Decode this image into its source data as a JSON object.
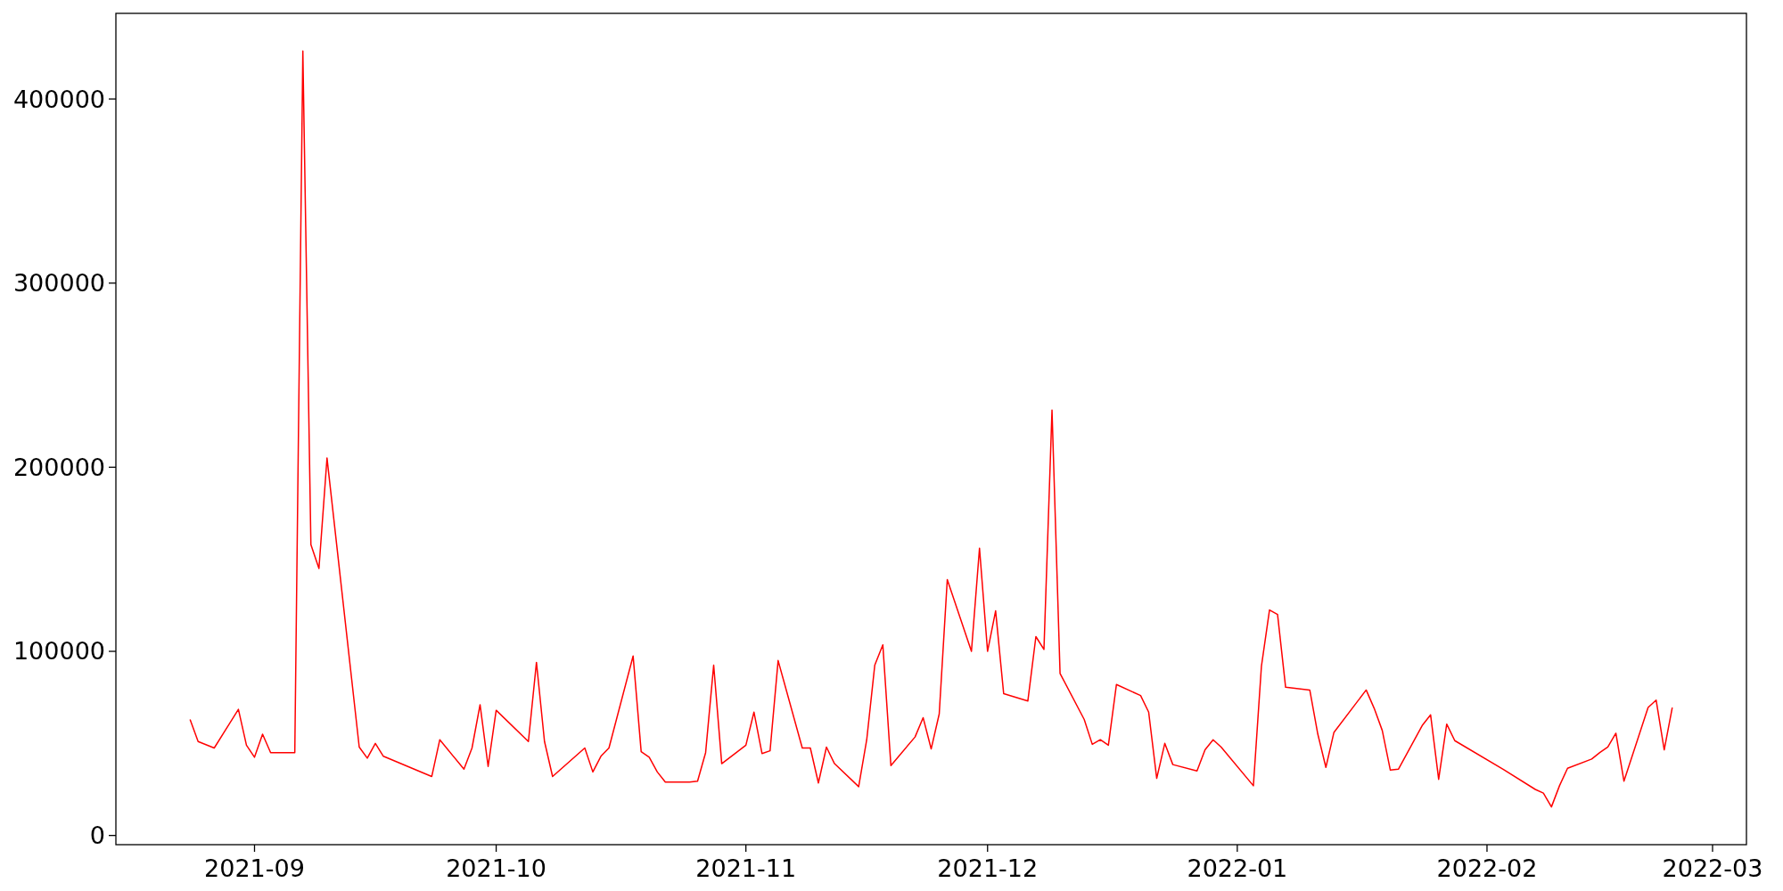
{
  "chart_data": {
    "type": "line",
    "x": [
      "2021-08-24",
      "2021-08-25",
      "2021-08-27",
      "2021-08-30",
      "2021-08-31",
      "2021-09-01",
      "2021-09-02",
      "2021-09-03",
      "2021-09-06",
      "2021-09-07",
      "2021-09-08",
      "2021-09-09",
      "2021-09-10",
      "2021-09-14",
      "2021-09-15",
      "2021-09-16",
      "2021-09-17",
      "2021-09-23",
      "2021-09-24",
      "2021-09-27",
      "2021-09-28",
      "2021-09-29",
      "2021-09-30",
      "2021-10-01",
      "2021-10-05",
      "2021-10-06",
      "2021-10-07",
      "2021-10-08",
      "2021-10-12",
      "2021-10-13",
      "2021-10-14",
      "2021-10-15",
      "2021-10-18",
      "2021-10-19",
      "2021-10-20",
      "2021-10-21",
      "2021-10-22",
      "2021-10-25",
      "2021-10-26",
      "2021-10-27",
      "2021-10-28",
      "2021-10-29",
      "2021-11-01",
      "2021-11-02",
      "2021-11-03",
      "2021-11-04",
      "2021-11-05",
      "2021-11-08",
      "2021-11-09",
      "2021-11-10",
      "2021-11-11",
      "2021-11-12",
      "2021-11-15",
      "2021-11-16",
      "2021-11-17",
      "2021-11-18",
      "2021-11-19",
      "2021-11-22",
      "2021-11-23",
      "2021-11-24",
      "2021-11-25",
      "2021-11-26",
      "2021-11-29",
      "2021-11-30",
      "2021-12-01",
      "2021-12-02",
      "2021-12-03",
      "2021-12-06",
      "2021-12-07",
      "2021-12-08",
      "2021-12-09",
      "2021-12-10",
      "2021-12-13",
      "2021-12-14",
      "2021-12-15",
      "2021-12-16",
      "2021-12-17",
      "2021-12-20",
      "2021-12-21",
      "2021-12-22",
      "2021-12-23",
      "2021-12-24",
      "2021-12-27",
      "2021-12-28",
      "2021-12-29",
      "2021-12-30",
      "2022-01-03",
      "2022-01-04",
      "2022-01-05",
      "2022-01-06",
      "2022-01-07",
      "2022-01-10",
      "2022-01-11",
      "2022-01-12",
      "2022-01-13",
      "2022-01-17",
      "2022-01-18",
      "2022-01-19",
      "2022-01-20",
      "2022-01-21",
      "2022-01-24",
      "2022-01-25",
      "2022-01-26",
      "2022-01-27",
      "2022-01-28",
      "2022-02-03",
      "2022-02-07",
      "2022-02-08",
      "2022-02-09",
      "2022-02-10",
      "2022-02-11",
      "2022-02-14",
      "2022-02-15",
      "2022-02-16",
      "2022-02-17",
      "2022-02-18",
      "2022-02-21",
      "2022-02-22",
      "2022-02-23",
      "2022-02-24"
    ],
    "series": [
      {
        "color": "#ff0000",
        "values": [
          63000,
          51000,
          47500,
          68500,
          49000,
          42500,
          55000,
          45000,
          45000,
          426000,
          158000,
          145000,
          205000,
          48000,
          42000,
          50000,
          43000,
          32000,
          52000,
          36000,
          47500,
          71000,
          37500,
          68000,
          51000,
          94000,
          51000,
          32000,
          47500,
          34500,
          43000,
          47500,
          97500,
          45500,
          42500,
          34500,
          29000,
          29000,
          29500,
          45000,
          92500,
          39000,
          49000,
          67000,
          44500,
          46000,
          95000,
          47500,
          47500,
          28500,
          48000,
          39000,
          26500,
          52000,
          92500,
          103500,
          38000,
          53500,
          64000,
          47000,
          66000,
          139000,
          100000,
          156000,
          100000,
          122000,
          77000,
          73000,
          108000,
          101000,
          231000,
          88000,
          63000,
          49500,
          52000,
          49000,
          82000,
          76000,
          67000,
          31000,
          50000,
          38500,
          35000,
          46500,
          52000,
          48000,
          27000,
          92000,
          122500,
          120000,
          80500,
          79000,
          55000,
          37000,
          56000,
          79000,
          69000,
          57000,
          35500,
          36000,
          60000,
          65500,
          30500,
          60500,
          51500,
          36000,
          25000,
          23000,
          15500,
          27000,
          36500,
          41500,
          45000,
          48000,
          55500,
          29500,
          69500,
          73500,
          46500,
          69500
        ]
      }
    ],
    "xlim": [
      "2021-08-14T19:00",
      "2022-03-05T05:00"
    ],
    "xticks": [
      {
        "value": "2021-09-01",
        "label": "2021-09"
      },
      {
        "value": "2021-10-01",
        "label": "2021-10"
      },
      {
        "value": "2021-11-01",
        "label": "2021-11"
      },
      {
        "value": "2021-12-01",
        "label": "2021-12"
      },
      {
        "value": "2022-01-01",
        "label": "2022-01"
      },
      {
        "value": "2022-02-01",
        "label": "2022-02"
      },
      {
        "value": "2022-03-01",
        "label": "2022-03"
      }
    ],
    "ylim": [
      -5000,
      446500
    ],
    "yticks": [
      0,
      100000,
      200000,
      300000,
      400000
    ],
    "marker": "none",
    "line_style": "solid"
  }
}
